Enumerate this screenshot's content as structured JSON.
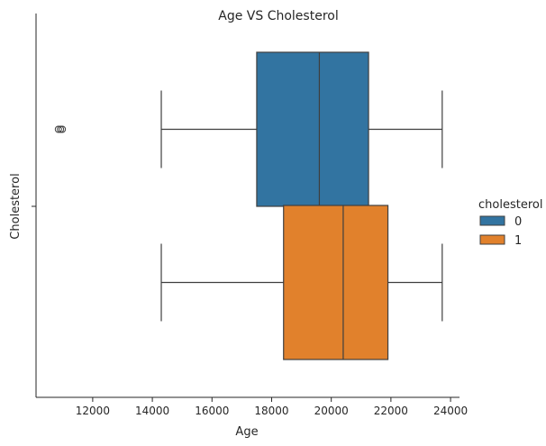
{
  "chart_data": {
    "type": "box",
    "orientation": "horizontal",
    "title": "Age VS Cholesterol",
    "xlabel": "Age",
    "ylabel": "Cholesterol",
    "xlim": [
      10100,
      24300
    ],
    "x_ticks": [
      12000,
      14000,
      16000,
      18000,
      20000,
      22000,
      24000
    ],
    "legend": {
      "title": "cholesterol",
      "position": "right"
    },
    "series": [
      {
        "name": "0",
        "color": "#3274a1",
        "whisker_low": 14300,
        "q1": 17500,
        "median": 19600,
        "q3": 21250,
        "whisker_high": 23720,
        "outliers": [
          10850,
          10920,
          10980
        ]
      },
      {
        "name": "1",
        "color": "#e1812c",
        "whisker_low": 14300,
        "q1": 18400,
        "median": 20400,
        "q3": 21900,
        "whisker_high": 23720,
        "outliers": []
      }
    ]
  }
}
